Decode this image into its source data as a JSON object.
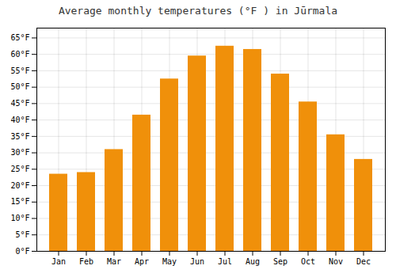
{
  "chart_data": {
    "type": "bar",
    "title": "Average monthly temperatures (°F ) in Jūrmala",
    "categories": [
      "Jan",
      "Feb",
      "Mar",
      "Apr",
      "May",
      "Jun",
      "Jul",
      "Aug",
      "Sep",
      "Oct",
      "Nov",
      "Dec"
    ],
    "values": [
      23.5,
      24.0,
      31.0,
      41.5,
      52.5,
      59.5,
      62.5,
      61.5,
      54.0,
      45.5,
      35.5,
      28.0
    ],
    "color": "#F0900A",
    "ylim": [
      0,
      68
    ],
    "yticks": [
      {
        "value": 0,
        "label": "0°F"
      },
      {
        "value": 5,
        "label": "5°F"
      },
      {
        "value": 10,
        "label": "10°F"
      },
      {
        "value": 15,
        "label": "15°F"
      },
      {
        "value": 20,
        "label": "20°F"
      },
      {
        "value": 25,
        "label": "25°F"
      },
      {
        "value": 30,
        "label": "30°F"
      },
      {
        "value": 35,
        "label": "35°F"
      },
      {
        "value": 40,
        "label": "40°F"
      },
      {
        "value": 45,
        "label": "45°F"
      },
      {
        "value": 50,
        "label": "50°F"
      },
      {
        "value": 55,
        "label": "55°F"
      },
      {
        "value": 60,
        "label": "60°F"
      },
      {
        "value": 65,
        "label": "65°F"
      }
    ],
    "grid": true
  }
}
